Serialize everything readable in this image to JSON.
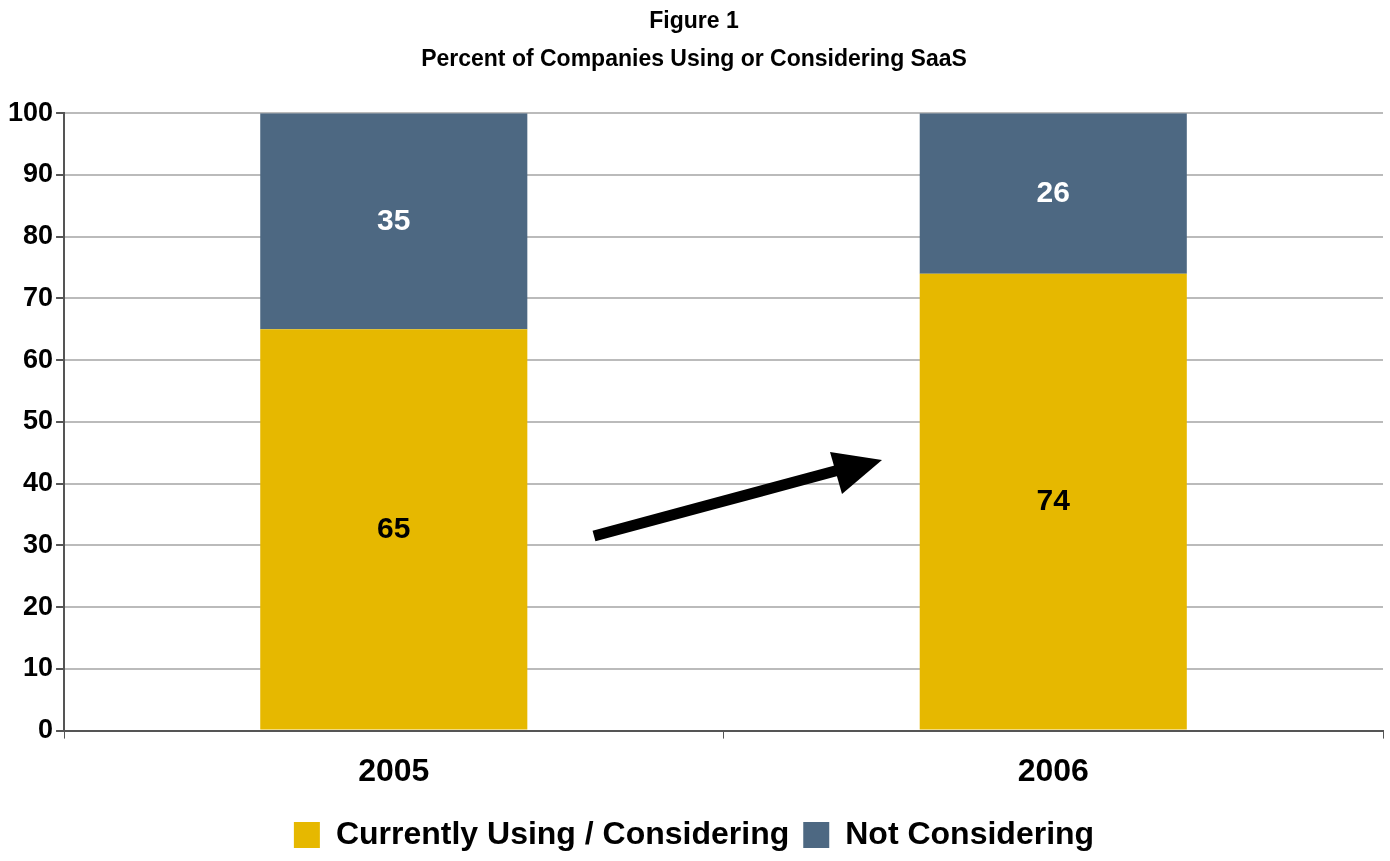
{
  "chart_data": {
    "type": "bar",
    "title": "Figure 1",
    "subtitle": "Percent of Companies Using or Considering SaaS",
    "categories": [
      "2005",
      "2006"
    ],
    "stacked": true,
    "series": [
      {
        "name": "Currently Using / Considering",
        "color": "#e6b800",
        "values": [
          65,
          74
        ]
      },
      {
        "name": "Not Considering",
        "color": "#4d6882",
        "values": [
          35,
          26
        ]
      }
    ],
    "ylim": [
      0,
      100
    ],
    "yticks": [
      0,
      10,
      20,
      30,
      40,
      50,
      60,
      70,
      80,
      90,
      100
    ],
    "grid": "y",
    "legend": "bottom",
    "data_labels": true
  }
}
